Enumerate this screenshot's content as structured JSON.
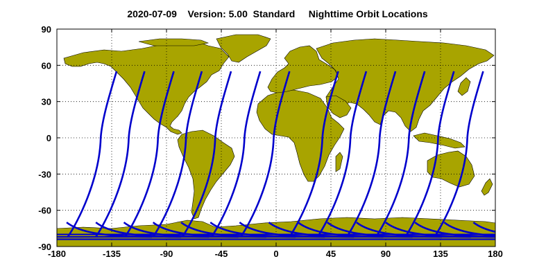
{
  "title": "2020-07-09    Version: 5.00  Standard     Nighttime Orbit Locations",
  "chart_data": {
    "type": "map",
    "projection": "equirectangular",
    "xlim": [
      -180,
      180
    ],
    "ylim": [
      -90,
      90
    ],
    "x_ticks": [
      -180,
      -135,
      -90,
      -45,
      0,
      45,
      90,
      135,
      180
    ],
    "y_ticks": [
      90,
      60,
      30,
      0,
      -30,
      -60,
      -90
    ],
    "grid": "dotted",
    "colors": {
      "land": "#a8a400",
      "coast": "#000000",
      "orbit": "#0000cc",
      "background": "#ffffff"
    },
    "orbit_tracks": {
      "north_end_lat": 55,
      "south_turn_lat": -82,
      "north_end_lons": [
        -131,
        -108,
        -84,
        -61,
        -37,
        -13,
        11,
        51,
        74,
        98,
        122,
        146,
        170
      ],
      "south_loop_start_lons": [
        -172,
        -148,
        -125,
        -101,
        -78,
        -54,
        -30,
        -6,
        18,
        42,
        66,
        90,
        114,
        138,
        162
      ]
    }
  }
}
